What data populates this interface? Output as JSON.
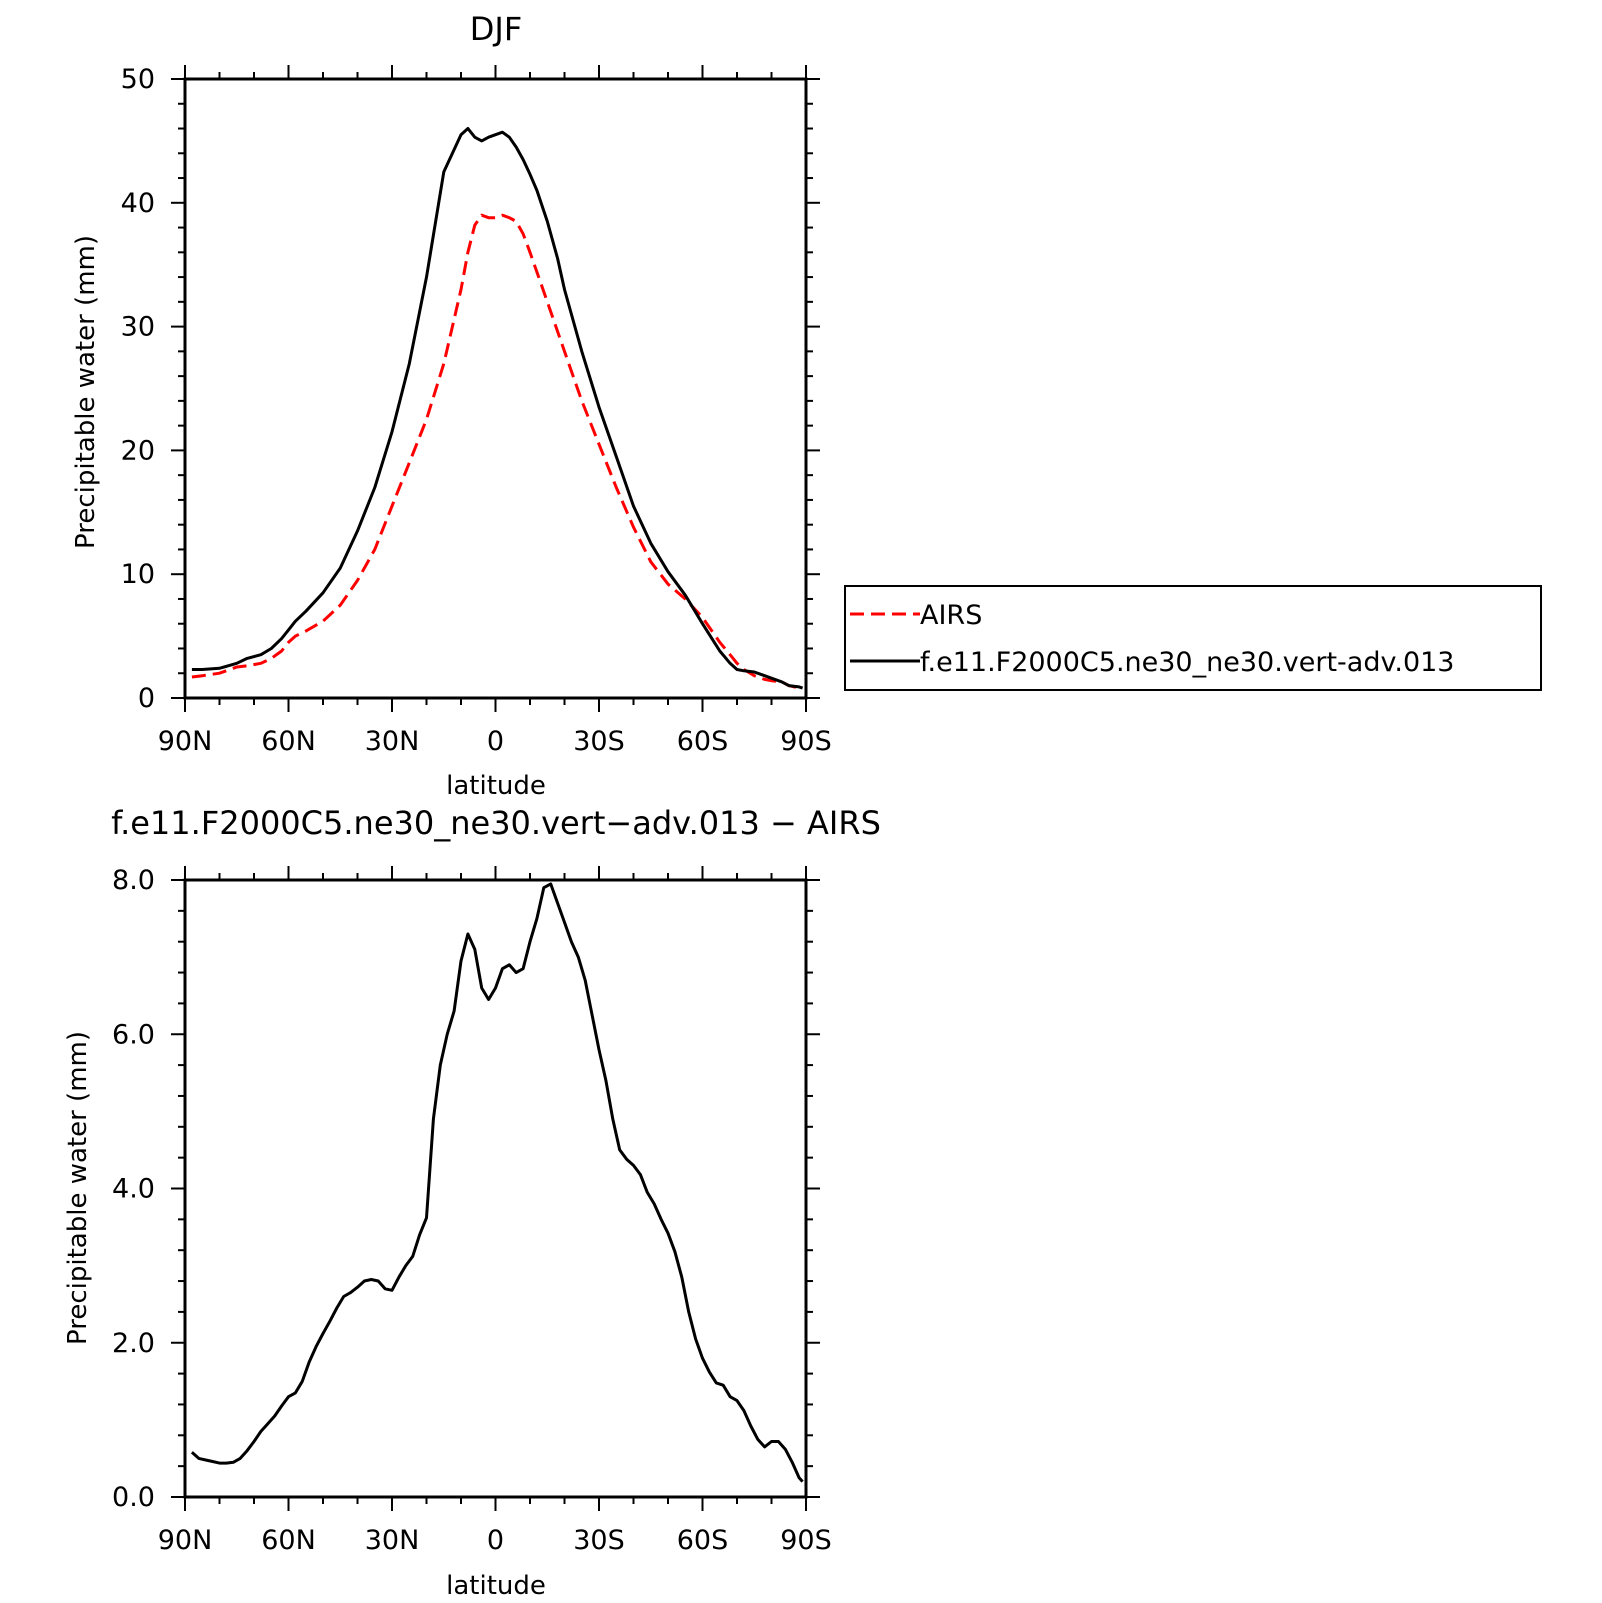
{
  "colors": {
    "airs": "#ff0000",
    "model": "#000000"
  },
  "chart_data": [
    {
      "type": "line",
      "title": "DJF",
      "xlabel": "latitude",
      "ylabel": "Precipitable water (mm)",
      "xlim": [
        90,
        -90
      ],
      "ylim": [
        0,
        50
      ],
      "yticks": [
        0,
        10,
        20,
        30,
        40,
        50
      ],
      "ytick_labels": [
        "0",
        "10",
        "20",
        "30",
        "40",
        "50"
      ],
      "xticks": [
        90,
        60,
        30,
        0,
        -30,
        -60,
        -90
      ],
      "xtick_labels": [
        "90N",
        "60N",
        "30N",
        "0",
        "30S",
        "60S",
        "90S"
      ],
      "legend": {
        "position": "right",
        "entries": [
          "AIRS",
          "f.e11.F2000C5.ne30_ne30.vert-adv.013"
        ]
      },
      "series": [
        {
          "name": "AIRS",
          "style": "dashed",
          "color": "#ff0000",
          "x": [
            88,
            85,
            80,
            75,
            72,
            68,
            65,
            62,
            60,
            58,
            55,
            50,
            45,
            40,
            35,
            30,
            25,
            20,
            15,
            10,
            8,
            6,
            4,
            2,
            0,
            -2,
            -4,
            -6,
            -8,
            -10,
            -15,
            -20,
            -25,
            -30,
            -35,
            -40,
            -45,
            -50,
            -55,
            -60,
            -65,
            -68,
            -70,
            -72,
            -75,
            -78,
            -80,
            -83,
            -85,
            -88,
            -89
          ],
          "y": [
            1.7,
            1.8,
            2.0,
            2.5,
            2.6,
            2.8,
            3.2,
            3.8,
            4.5,
            5.0,
            5.4,
            6.2,
            7.5,
            9.5,
            12.0,
            15.5,
            19.0,
            22.5,
            27.0,
            33.0,
            36.0,
            38.2,
            39.0,
            38.8,
            38.8,
            39.0,
            38.8,
            38.5,
            37.5,
            36.0,
            32.0,
            28.0,
            24.0,
            20.5,
            17.0,
            13.8,
            11.0,
            9.2,
            8.0,
            6.5,
            4.5,
            3.5,
            2.8,
            2.3,
            1.8,
            1.5,
            1.4,
            1.3,
            1.0,
            0.8,
            0.7
          ]
        },
        {
          "name": "f.e11.F2000C5.ne30_ne30.vert-adv.013",
          "style": "solid",
          "color": "#000000",
          "x": [
            88,
            85,
            80,
            75,
            72,
            68,
            65,
            62,
            60,
            58,
            55,
            50,
            45,
            40,
            35,
            30,
            25,
            20,
            15,
            10,
            8,
            6,
            4,
            2,
            0,
            -2,
            -4,
            -6,
            -8,
            -10,
            -12,
            -15,
            -18,
            -20,
            -25,
            -30,
            -35,
            -40,
            -45,
            -50,
            -55,
            -60,
            -65,
            -68,
            -70,
            -72,
            -75,
            -78,
            -80,
            -83,
            -85,
            -88,
            -89
          ],
          "y": [
            2.3,
            2.3,
            2.4,
            2.8,
            3.2,
            3.5,
            4.0,
            4.8,
            5.5,
            6.2,
            7.0,
            8.5,
            10.5,
            13.5,
            17.0,
            21.5,
            27.0,
            34.0,
            42.5,
            45.5,
            46.0,
            45.3,
            45.0,
            45.3,
            45.5,
            45.7,
            45.3,
            44.5,
            43.5,
            42.3,
            41.0,
            38.5,
            35.5,
            33.0,
            28.0,
            23.5,
            19.5,
            15.5,
            12.5,
            10.2,
            8.3,
            6.0,
            3.8,
            2.8,
            2.3,
            2.2,
            2.1,
            1.8,
            1.6,
            1.3,
            1.0,
            0.9,
            0.8
          ]
        }
      ]
    },
    {
      "type": "line",
      "title": "f.e11.F2000C5.ne30_ne30.vert−adv.013 − AIRS",
      "xlabel": "latitude",
      "ylabel": "Precipitable water (mm)",
      "xlim": [
        90,
        -90
      ],
      "ylim": [
        0,
        8
      ],
      "yticks": [
        0,
        2,
        4,
        6,
        8
      ],
      "ytick_labels": [
        "0.0",
        "2.0",
        "4.0",
        "6.0",
        "8.0"
      ],
      "xticks": [
        90,
        60,
        30,
        0,
        -30,
        -60,
        -90
      ],
      "xtick_labels": [
        "90N",
        "60N",
        "30N",
        "0",
        "30S",
        "60S",
        "90S"
      ],
      "series": [
        {
          "style": "solid",
          "color": "#000000",
          "x": [
            88,
            86,
            84,
            82,
            80,
            78,
            76,
            74,
            72,
            70,
            68,
            66,
            64,
            62,
            60,
            58,
            56,
            54,
            52,
            50,
            48,
            46,
            44,
            42,
            40,
            38,
            36,
            34,
            32,
            30,
            28,
            26,
            24,
            22,
            20,
            18,
            16,
            14,
            12,
            10,
            8,
            6,
            4,
            2,
            0,
            -2,
            -4,
            -6,
            -8,
            -10,
            -12,
            -14,
            -16,
            -18,
            -20,
            -22,
            -24,
            -26,
            -28,
            -30,
            -32,
            -34,
            -36,
            -38,
            -40,
            -42,
            -44,
            -46,
            -48,
            -50,
            -52,
            -54,
            -56,
            -58,
            -60,
            -62,
            -64,
            -66,
            -68,
            -70,
            -72,
            -74,
            -76,
            -78,
            -80,
            -82,
            -84,
            -86,
            -88,
            -89
          ],
          "y": [
            0.58,
            0.5,
            0.48,
            0.46,
            0.44,
            0.44,
            0.45,
            0.5,
            0.6,
            0.72,
            0.85,
            0.95,
            1.05,
            1.18,
            1.3,
            1.35,
            1.5,
            1.75,
            1.95,
            2.12,
            2.28,
            2.45,
            2.6,
            2.65,
            2.72,
            2.8,
            2.82,
            2.8,
            2.7,
            2.68,
            2.85,
            3.0,
            3.12,
            3.4,
            3.62,
            4.9,
            5.6,
            6.0,
            6.3,
            6.95,
            7.3,
            7.1,
            6.6,
            6.45,
            6.6,
            6.85,
            6.9,
            6.8,
            6.85,
            7.2,
            7.5,
            7.9,
            7.95,
            7.7,
            7.45,
            7.2,
            7.0,
            6.7,
            6.25,
            5.8,
            5.4,
            4.9,
            4.5,
            4.38,
            4.3,
            4.18,
            3.95,
            3.8,
            3.6,
            3.42,
            3.18,
            2.85,
            2.4,
            2.05,
            1.8,
            1.62,
            1.48,
            1.45,
            1.3,
            1.25,
            1.12,
            0.92,
            0.75,
            0.65,
            0.72,
            0.72,
            0.62,
            0.45,
            0.25,
            0.2
          ]
        }
      ]
    }
  ]
}
